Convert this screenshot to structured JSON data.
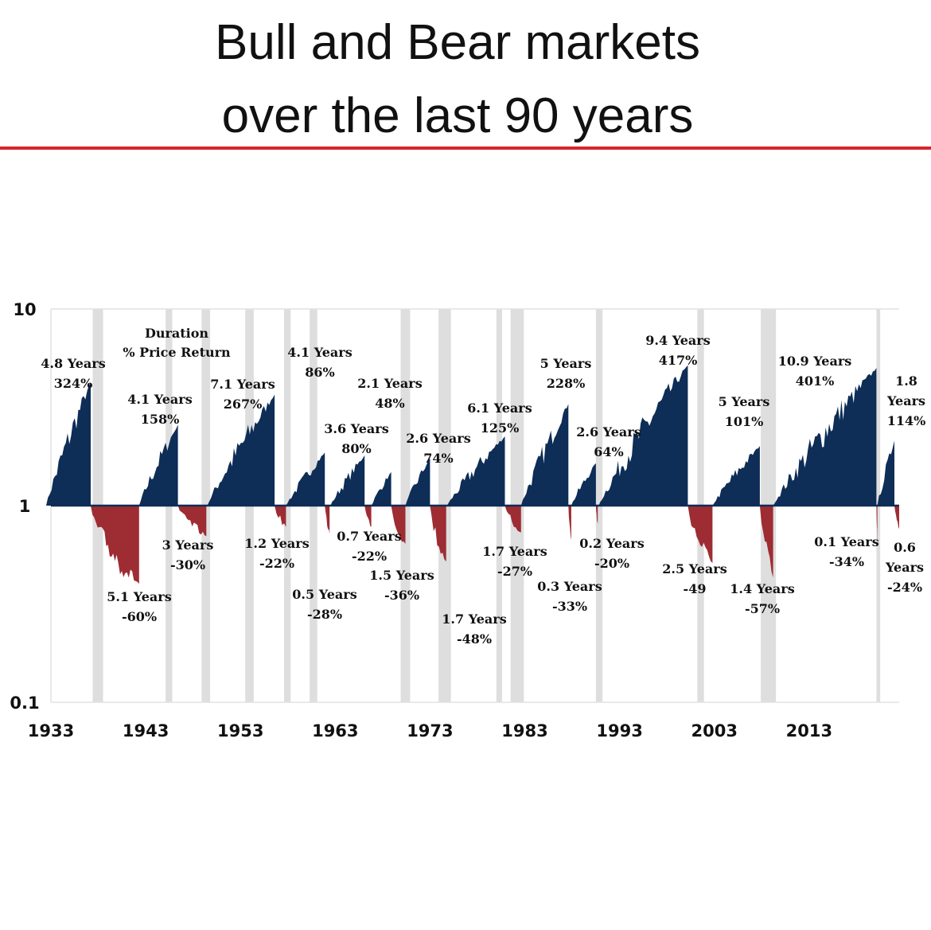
{
  "title_lines": [
    "Bull and Bear markets",
    "over the last 90 years"
  ],
  "colors": {
    "bull": "#0e2d57",
    "bear": "#9e2c33",
    "recession": "#dedede",
    "title_rule": "#d7262a"
  },
  "chart_data": {
    "type": "area",
    "title": "",
    "xlabel": "",
    "ylabel": "",
    "y_scale": "log",
    "ylim": [
      0.1,
      10
    ],
    "xlim": [
      1933,
      2022.5
    ],
    "x_ticks": [
      "1933",
      "1943",
      "1953",
      "1963",
      "1973",
      "1983",
      "1993",
      "2003",
      "2013"
    ],
    "y_ticks": [
      "10",
      "1",
      "0.1"
    ],
    "grid": false,
    "legend_note": [
      "Duration",
      "% Price Return"
    ],
    "recession_bands": [
      [
        1937.4,
        1938.5
      ],
      [
        1945.1,
        1945.8
      ],
      [
        1948.9,
        1949.8
      ],
      [
        1953.5,
        1954.4
      ],
      [
        1957.6,
        1958.3
      ],
      [
        1960.3,
        1961.1
      ],
      [
        1969.9,
        1970.9
      ],
      [
        1973.9,
        1975.2
      ],
      [
        1980.0,
        1980.6
      ],
      [
        1981.5,
        1982.9
      ],
      [
        1990.5,
        1991.2
      ],
      [
        2001.2,
        2001.9
      ],
      [
        2007.9,
        2009.5
      ],
      [
        2020.1,
        2020.5
      ]
    ],
    "bull_markets": [
      {
        "start": 1932.5,
        "end": 1937.2,
        "peak": 4.24,
        "label": [
          "4.8 Years",
          "324%"
        ]
      },
      {
        "start": 1942.3,
        "end": 1946.4,
        "peak": 2.58,
        "label": [
          "4.1 Years",
          "158%"
        ]
      },
      {
        "start": 1949.5,
        "end": 1956.6,
        "peak": 3.67,
        "label": [
          "7.1 Years",
          "267%"
        ]
      },
      {
        "start": 1957.8,
        "end": 1961.9,
        "peak": 1.86,
        "label": [
          "4.1 Years",
          "86%"
        ]
      },
      {
        "start": 1962.5,
        "end": 1966.1,
        "peak": 1.8,
        "label": [
          "3.6 Years",
          "80%"
        ]
      },
      {
        "start": 1966.8,
        "end": 1968.9,
        "peak": 1.48,
        "label": [
          "2.1 Years",
          "48%"
        ]
      },
      {
        "start": 1970.4,
        "end": 1973.0,
        "peak": 1.74,
        "label": [
          "2.6 Years",
          "74%"
        ]
      },
      {
        "start": 1974.8,
        "end": 1980.9,
        "peak": 2.25,
        "label": [
          "6.1 Years",
          "125%"
        ]
      },
      {
        "start": 1982.6,
        "end": 1987.6,
        "peak": 3.28,
        "label": [
          "5 Years",
          "228%"
        ]
      },
      {
        "start": 1987.9,
        "end": 1990.5,
        "peak": 1.64,
        "label": [
          "2.6 Years",
          "64%"
        ]
      },
      {
        "start": 1990.8,
        "end": 2000.2,
        "peak": 5.17,
        "label": [
          "9.4 Years",
          "417%"
        ]
      },
      {
        "start": 2002.8,
        "end": 2007.8,
        "peak": 2.01,
        "label": [
          "5 Years",
          "101%"
        ]
      },
      {
        "start": 2009.2,
        "end": 2020.1,
        "peak": 5.01,
        "label": [
          "10.9 Years",
          "401%"
        ]
      },
      {
        "start": 2020.2,
        "end": 2022.0,
        "peak": 2.14,
        "label": [
          "1.8",
          "Years",
          "114%"
        ]
      }
    ],
    "bear_markets": [
      {
        "start": 1937.2,
        "end": 1942.3,
        "trough": 0.4,
        "label": [
          "5.1 Years",
          "-60%"
        ]
      },
      {
        "start": 1946.4,
        "end": 1949.4,
        "trough": 0.7,
        "label": [
          "3 Years",
          "-30%"
        ]
      },
      {
        "start": 1956.6,
        "end": 1957.8,
        "trough": 0.78,
        "label": [
          "1.2 Years",
          "-22%"
        ]
      },
      {
        "start": 1961.9,
        "end": 1962.4,
        "trough": 0.72,
        "label": [
          "0.5 Years",
          "-28%"
        ]
      },
      {
        "start": 1966.1,
        "end": 1966.8,
        "trough": 0.78,
        "label": [
          "0.7 Years",
          "-22%"
        ]
      },
      {
        "start": 1968.9,
        "end": 1970.4,
        "trough": 0.64,
        "label": [
          "1.5 Years",
          "-36%"
        ]
      },
      {
        "start": 1973.0,
        "end": 1974.7,
        "trough": 0.52,
        "label": [
          "1.7 Years",
          "-48%"
        ]
      },
      {
        "start": 1980.9,
        "end": 1982.6,
        "trough": 0.73,
        "label": [
          "1.7 Years",
          "-27%"
        ]
      },
      {
        "start": 1987.6,
        "end": 1987.9,
        "trough": 0.67,
        "label": [
          "0.3 Years",
          "-33%"
        ]
      },
      {
        "start": 1990.5,
        "end": 1990.7,
        "trough": 0.8,
        "label": [
          "0.2 Years",
          "-20%"
        ]
      },
      {
        "start": 2000.2,
        "end": 2002.8,
        "trough": 0.51,
        "label": [
          "2.5 Years",
          "-49"
        ]
      },
      {
        "start": 2007.8,
        "end": 2009.2,
        "trough": 0.43,
        "label": [
          "1.4 Years",
          "-57%"
        ]
      },
      {
        "start": 2020.1,
        "end": 2020.2,
        "trough": 0.66,
        "label": [
          "0.1 Years",
          "-34%"
        ]
      },
      {
        "start": 2022.0,
        "end": 2022.6,
        "trough": 0.76,
        "label": [
          "0.6",
          "Years",
          "-24%"
        ]
      }
    ]
  }
}
